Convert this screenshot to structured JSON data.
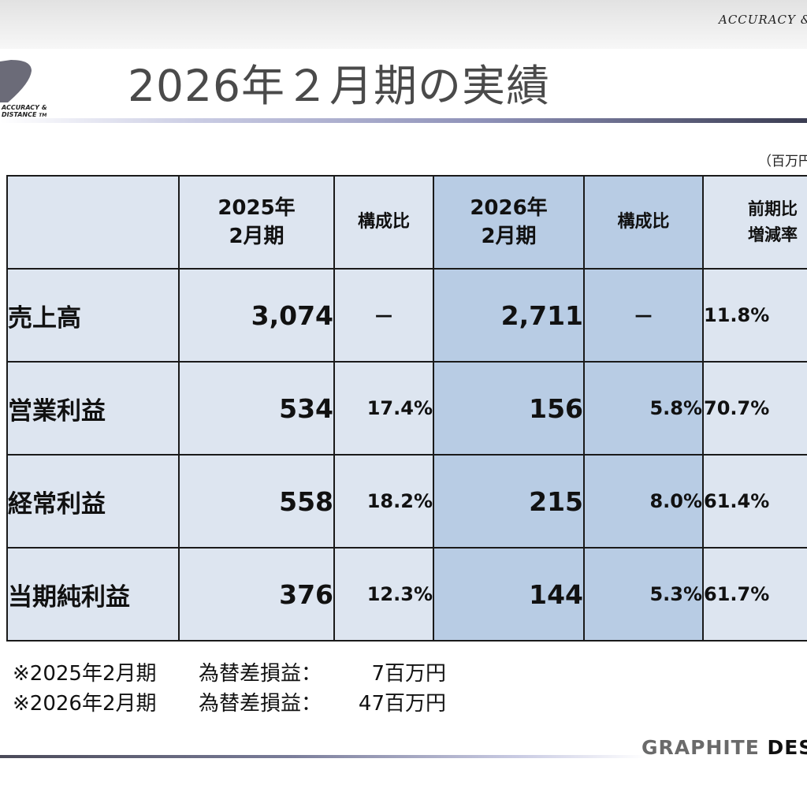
{
  "header": {
    "tagline": "ACCURACY &",
    "logo_text_line1": "ACCURACY &",
    "logo_text_line2": "DISTANCE",
    "logo_tm": "TM",
    "title": "2026年２月期の実績"
  },
  "unit_note": "（百万円",
  "table": {
    "headers": {
      "col_2025": "2025年\n2月期",
      "ratio_2025": "構成比",
      "col_2026": "2026年\n2月期",
      "ratio_2026": "構成比",
      "change": "前期比\n増減率"
    },
    "rows": [
      {
        "label": "売上高",
        "v2025": "3,074",
        "r2025": "－",
        "v2026": "2,711",
        "r2026": "－",
        "change": "11.8%"
      },
      {
        "label": "営業利益",
        "v2025": "534",
        "r2025": "17.4%",
        "v2026": "156",
        "r2026": "5.8%",
        "change": "70.7%"
      },
      {
        "label": "経常利益",
        "v2025": "558",
        "r2025": "18.2%",
        "v2026": "215",
        "r2026": "8.0%",
        "change": "61.4%"
      },
      {
        "label": "当期純利益",
        "v2025": "376",
        "r2025": "12.3%",
        "v2026": "144",
        "r2026": "5.3%",
        "change": "61.7%"
      }
    ]
  },
  "footnotes": [
    {
      "period": "※2025年2月期",
      "label": "為替差損益：",
      "amount": "7百万円"
    },
    {
      "period": "※2026年2月期",
      "label": "為替差損益：",
      "amount": "47百万円"
    }
  ],
  "footer": {
    "brand_part1": "GRAPHITE",
    "brand_part2": "DESI"
  },
  "colors": {
    "header_cell": "#dde5f0",
    "highlight_cell": "#b8cce4",
    "title_text": "#4a4a4a"
  }
}
